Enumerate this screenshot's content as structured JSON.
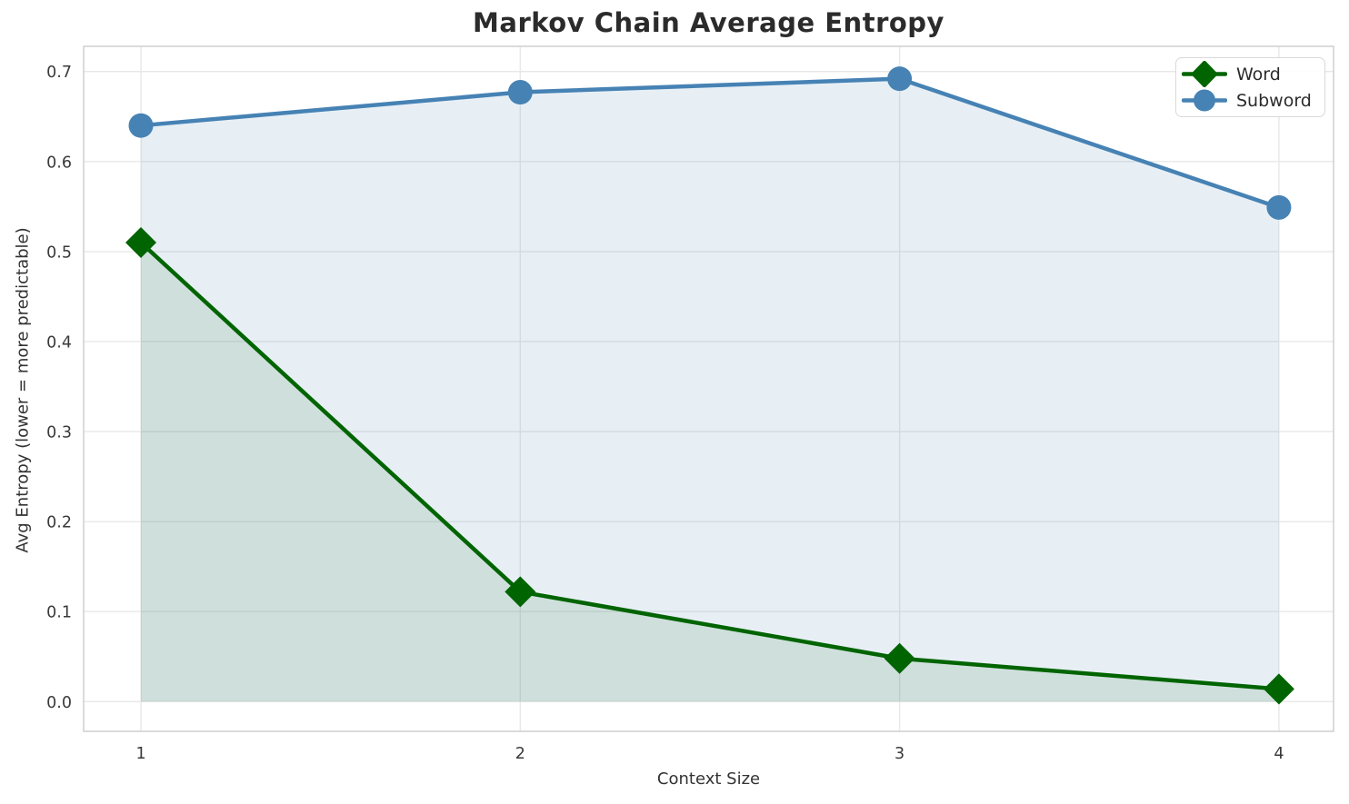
{
  "chart_data": {
    "type": "line",
    "title": "Markov Chain Average Entropy",
    "xlabel": "Context Size",
    "ylabel": "Avg Entropy (lower = more predictable)",
    "x": [
      1,
      2,
      3,
      4
    ],
    "series": [
      {
        "name": "Word",
        "values": [
          0.51,
          0.122,
          0.048,
          0.014
        ],
        "color": "#006400",
        "marker": "diamond",
        "fill_to_zero": true,
        "fill_alpha": 0.1
      },
      {
        "name": "Subword",
        "values": [
          0.64,
          0.677,
          0.692,
          0.549
        ],
        "color": "#4682b4",
        "marker": "circle",
        "fill_to_zero": true,
        "fill_alpha": 0.13
      }
    ],
    "xticks": {
      "values": [
        1,
        2,
        3,
        4
      ],
      "labels": [
        "1",
        "2",
        "3",
        "4"
      ]
    },
    "yticks": {
      "values": [
        0.0,
        0.1,
        0.2,
        0.3,
        0.4,
        0.5,
        0.6,
        0.7
      ],
      "labels": [
        "0.0",
        "0.1",
        "0.2",
        "0.3",
        "0.4",
        "0.5",
        "0.6",
        "0.7"
      ]
    },
    "xlim": [
      0.849,
      4.144
    ],
    "ylim": [
      -0.033,
      0.728
    ],
    "grid": true,
    "legend_position": "upper right",
    "colors": {
      "grid": "#e8e8e8",
      "spine": "#cfcfcf",
      "tick_text": "#3a3a3a",
      "title_text": "#2b2b2b",
      "background": "#ffffff"
    }
  }
}
